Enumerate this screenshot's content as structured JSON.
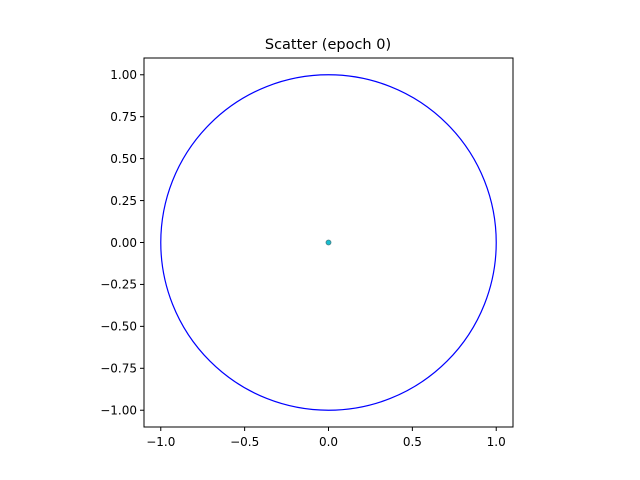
{
  "chart_data": {
    "type": "scatter",
    "title": "Scatter (epoch 0)",
    "xlabel": "",
    "ylabel": "",
    "xlim": [
      -1.1,
      1.1
    ],
    "ylim": [
      -1.1,
      1.1
    ],
    "aspect": "equal",
    "grid": false,
    "x_ticks": [
      -1.0,
      -0.5,
      0.0,
      0.5,
      1.0
    ],
    "x_tick_labels": [
      "−1.0",
      "−0.5",
      "0.0",
      "0.5",
      "1.0"
    ],
    "y_ticks": [
      1.0,
      0.75,
      0.5,
      0.25,
      0.0,
      -0.25,
      -0.5,
      -0.75,
      -1.0
    ],
    "y_tick_labels": [
      "1.00",
      "0.75",
      "0.50",
      "0.25",
      "0.00",
      "−0.25",
      "−0.50",
      "−0.75",
      "−1.00"
    ],
    "curves": [
      {
        "kind": "unit-circle",
        "center": [
          0,
          0
        ],
        "radius": 1.0,
        "color": "#0000ff"
      }
    ],
    "points": [
      {
        "x": 0.0,
        "y": 0.0,
        "color": "#17becf",
        "edge_color": "#4a7f86"
      }
    ]
  }
}
